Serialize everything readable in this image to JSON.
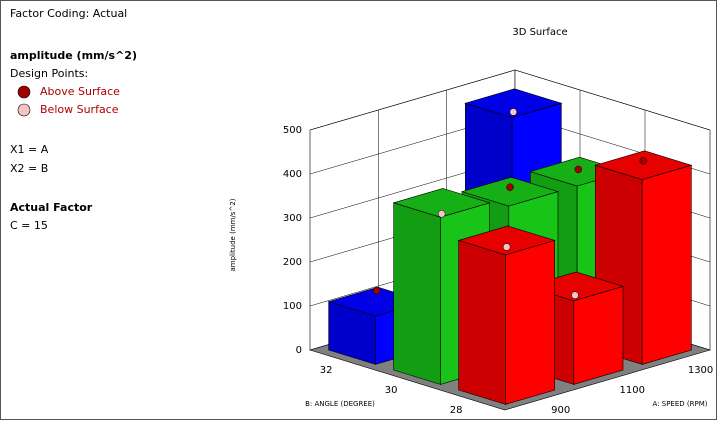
{
  "chart_data": {
    "type": "bar3d",
    "title": "3D Surface",
    "factor_coding": "Factor Coding: Actual",
    "response": "amplitude (mm/s^2)",
    "design_points_label": "Design Points:",
    "point_legend": [
      {
        "label": "Above Surface",
        "color": "#a00000"
      },
      {
        "label": "Below Surface",
        "color": "#f6c4c4"
      }
    ],
    "factor_map": [
      "X1 = A",
      "X2 = B"
    ],
    "actual_factor_title": "Actual Factor",
    "actual_factors": [
      "C = 15"
    ],
    "zlabel": "amplitude (mm/s^2)",
    "xlabel": "A: SPEED (RPM)",
    "ylabel": "B: ANGLE (DEGREE)",
    "x": [
      900,
      1100,
      1300
    ],
    "y": [
      28,
      30,
      32
    ],
    "zlim": [
      0,
      500
    ],
    "zticks": [
      0,
      100,
      200,
      300,
      400,
      500
    ],
    "series": [
      {
        "color": "#ff0000",
        "values": [
          340,
          190,
          420
        ],
        "point_values": [
          325,
          170,
          430
        ],
        "point_types": [
          1,
          1,
          0
        ]
      },
      {
        "color": "#18c418",
        "values": [
          380,
          360,
          360
        ],
        "point_values": [
          355,
          370,
          365
        ],
        "point_types": [
          1,
          0,
          0
        ]
      },
      {
        "color": "#0000ff",
        "values": [
          110,
          250,
          470
        ],
        "point_values": [
          135,
          240,
          450
        ],
        "point_types": [
          0,
          1,
          1
        ]
      }
    ]
  }
}
